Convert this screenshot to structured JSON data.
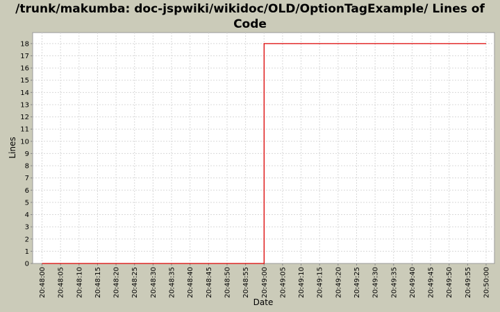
{
  "chart_data": {
    "type": "line",
    "step": true,
    "title": "/trunk/makumba: doc-jspwiki/wikidoc/OLD/OptionTagExample/ Lines of Code",
    "xlabel": "Date",
    "ylabel": "Lines",
    "x_ticks": [
      "20:48:00",
      "20:48:05",
      "20:48:10",
      "20:48:15",
      "20:48:20",
      "20:48:25",
      "20:48:30",
      "20:48:35",
      "20:48:40",
      "20:48:45",
      "20:48:50",
      "20:48:55",
      "20:49:00",
      "20:49:05",
      "20:49:10",
      "20:49:15",
      "20:49:20",
      "20:49:25",
      "20:49:30",
      "20:49:35",
      "20:49:40",
      "20:49:45",
      "20:49:50",
      "20:49:55",
      "20:50:00"
    ],
    "y_ticks": [
      0,
      1,
      2,
      3,
      4,
      5,
      6,
      7,
      8,
      9,
      10,
      11,
      12,
      13,
      14,
      15,
      16,
      17,
      18
    ],
    "ylim": [
      0,
      18.9
    ],
    "grid": true,
    "series": [
      {
        "color": "#dd0000",
        "points": [
          [
            "20:48:00",
            0
          ],
          [
            "20:49:00",
            0
          ],
          [
            "20:49:00",
            18
          ],
          [
            "20:50:00",
            18
          ]
        ]
      }
    ]
  }
}
